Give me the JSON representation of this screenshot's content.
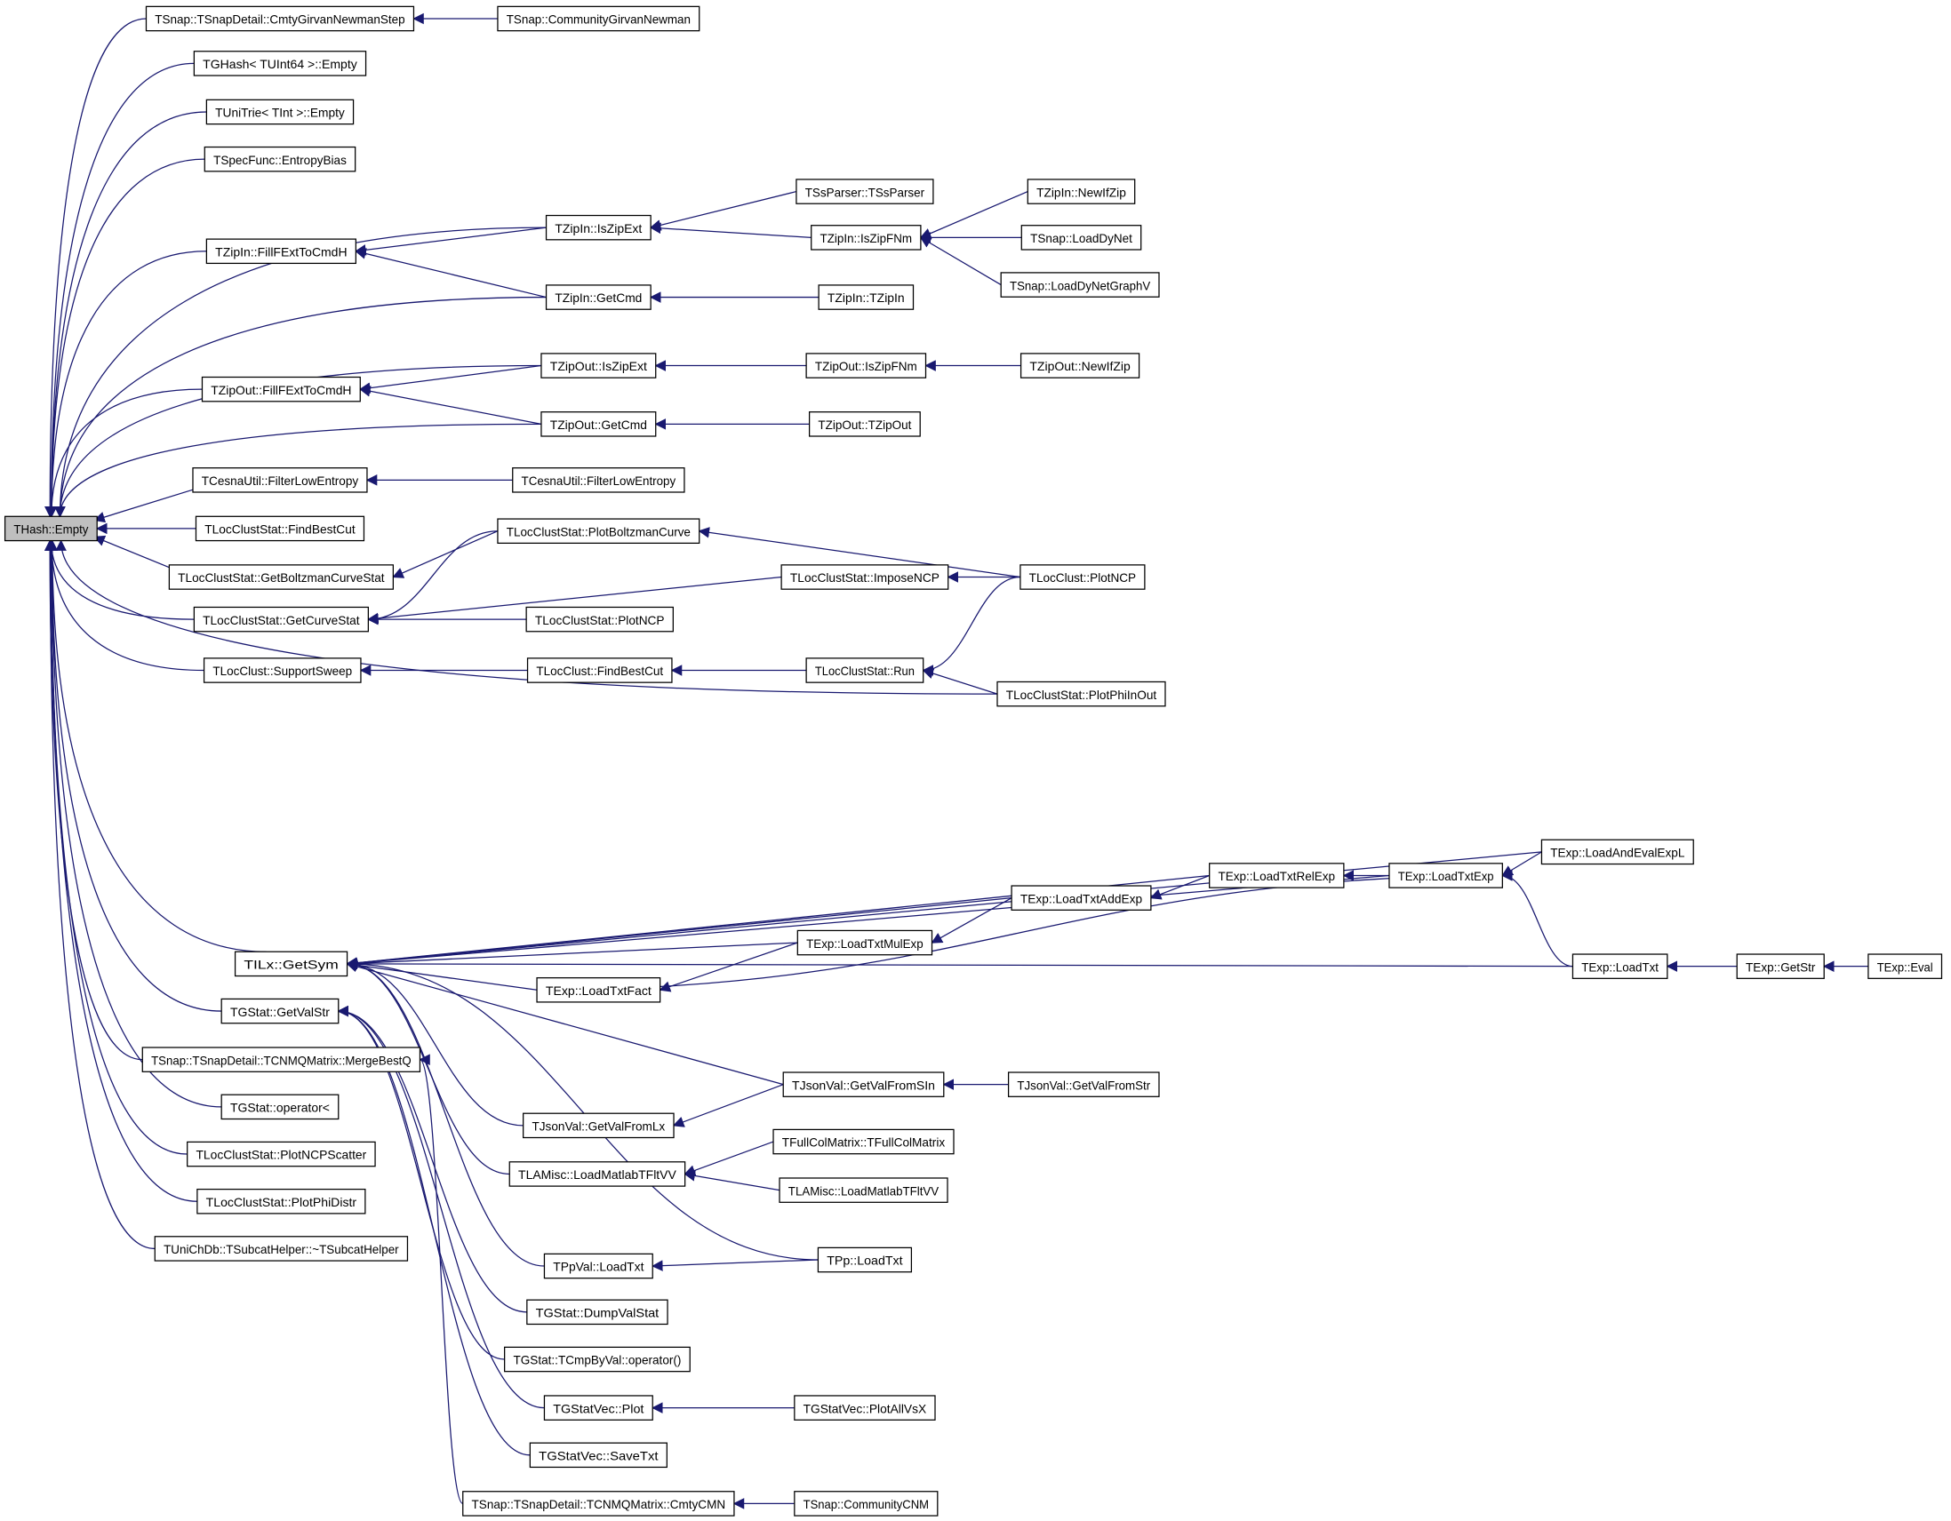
{
  "colors": {
    "edge": "#191970",
    "root_fill": "#bfbfbf",
    "node_fill": "#ffffff",
    "node_border": "#000000"
  },
  "root": "hashEmpty",
  "nodes": {
    "hashEmpty": "THash::Empty",
    "cgnStep": "TSnap::TSnapDetail::CmtyGirvanNewmanStep",
    "ghashEmpty": "TGHash< TUInt64 >::Empty",
    "unitrieEmpty": "TUniTrie< TInt >::Empty",
    "entropyBias": "TSpecFunc::EntropyBias",
    "zipInFill": "TZipIn::FillFExtToCmdH",
    "zipOutFill": "TZipOut::FillFExtToCmdH",
    "cesnaFLE1": "TCesnaUtil::FilterLowEntropy",
    "lcsFindBestCut": "TLocClustStat::FindBestCut",
    "lcsBoltzStat": "TLocClustStat::GetBoltzmanCurveStat",
    "lcsCurveStat": "TLocClustStat::GetCurveStat",
    "lcSupportSweep": "TLocClust::SupportSweep",
    "lxGetSym": "TILx::GetSym",
    "gstatGetValStr": "TGStat::GetValStr",
    "mergeBestQ": "TSnap::TSnapDetail::TCNMQMatrix::MergeBestQ",
    "gstatOpLess": "TGStat::operator<",
    "lcsNCPScatter": "TLocClustStat::PlotNCPScatter",
    "lcsPhiDistr": "TLocClustStat::PlotPhiDistr",
    "subcatHelper": "TUniChDb::TSubcatHelper::~TSubcatHelper",
    "communityGN": "TSnap::CommunityGirvanNewman",
    "zipInIsZipExt": "TZipIn::IsZipExt",
    "zipInGetCmd": "TZipIn::GetCmd",
    "zipOutIsZipExt": "TZipOut::IsZipExt",
    "zipOutGetCmd": "TZipOut::GetCmd",
    "cesnaFLE2": "TCesnaUtil::FilterLowEntropy",
    "lcsPlotBoltz": "TLocClustStat::PlotBoltzmanCurve",
    "lcsPlotNCP": "TLocClustStat::PlotNCP",
    "lcFindBestCut": "TLocClust::FindBestCut",
    "expLoadTxtFact": "TExp::LoadTxtFact",
    "jsonGetValFromLx": "TJsonVal::GetValFromLx",
    "lamiscLoad1": "TLAMisc::LoadMatlabTFltVV",
    "ppvalLoadTxt": "TPpVal::LoadTxt",
    "gstatDump": "TGStat::DumpValStat",
    "gstatCmpOp": "TGStat::TCmpByVal::operator()",
    "gstatvecPlot": "TGStatVec::Plot",
    "gstatvecSave": "TGStatVec::SaveTxt",
    "cmtyCMN": "TSnap::TSnapDetail::TCNMQMatrix::CmtyCMN",
    "ssParser": "TSsParser::TSsParser",
    "zipInIsZipFNm": "TZipIn::IsZipFNm",
    "zipInCtor": "TZipIn::TZipIn",
    "zipOutIsZipFNm": "TZipOut::IsZipFNm",
    "zipOutCtor": "TZipOut::TZipOut",
    "lcsImposeNCP": "TLocClustStat::ImposeNCP",
    "lcsRun": "TLocClustStat::Run",
    "expLoadTxtMulExp": "TExp::LoadTxtMulExp",
    "jsonGetValFromSIn": "TJsonVal::GetValFromSIn",
    "fullColMatrix": "TFullColMatrix::TFullColMatrix",
    "lamiscLoad2": "TLAMisc::LoadMatlabTFltVV",
    "ppLoadTxt": "TPp::LoadTxt",
    "gstatvecPlotAll": "TGStatVec::PlotAllVsX",
    "communityCNM": "TSnap::CommunityCNM",
    "zipInNewIfZip": "TZipIn::NewIfZip",
    "loadDyNet": "TSnap::LoadDyNet",
    "loadDyNetGraphV": "TSnap::LoadDyNetGraphV",
    "zipOutNewIfZip": "TZipOut::NewIfZip",
    "lcPlotNCP": "TLocClust::PlotNCP",
    "lcsPlotPhiInOut": "TLocClustStat::PlotPhiInOut",
    "expLoadTxtAddExp": "TExp::LoadTxtAddExp",
    "expLoadTxtRelExp": "TExp::LoadTxtRelExp",
    "expLoadTxtExp": "TExp::LoadTxtExp",
    "jsonGetValFromStr": "TJsonVal::GetValFromStr",
    "expLoadAndEval": "TExp::LoadAndEvalExpL",
    "expLoadTxt": "TExp::LoadTxt",
    "expGetStr": "TExp::GetStr",
    "expEval": "TExp::Eval"
  },
  "edges": [
    [
      "cgnStep",
      "hashEmpty"
    ],
    [
      "ghashEmpty",
      "hashEmpty"
    ],
    [
      "unitrieEmpty",
      "hashEmpty"
    ],
    [
      "entropyBias",
      "hashEmpty"
    ],
    [
      "zipInIsZipExt",
      "hashEmpty"
    ],
    [
      "zipInFill",
      "hashEmpty"
    ],
    [
      "zipInGetCmd",
      "hashEmpty"
    ],
    [
      "zipOutIsZipExt",
      "hashEmpty"
    ],
    [
      "zipOutFill",
      "hashEmpty"
    ],
    [
      "zipOutGetCmd",
      "hashEmpty"
    ],
    [
      "cesnaFLE1",
      "hashEmpty"
    ],
    [
      "lcsFindBestCut",
      "hashEmpty"
    ],
    [
      "lcsBoltzStat",
      "hashEmpty"
    ],
    [
      "lcsCurveStat",
      "hashEmpty"
    ],
    [
      "lcSupportSweep",
      "hashEmpty"
    ],
    [
      "lcsPlotPhiInOut",
      "hashEmpty"
    ],
    [
      "lxGetSym",
      "hashEmpty"
    ],
    [
      "gstatGetValStr",
      "hashEmpty"
    ],
    [
      "mergeBestQ",
      "hashEmpty"
    ],
    [
      "gstatOpLess",
      "hashEmpty"
    ],
    [
      "lcsNCPScatter",
      "hashEmpty"
    ],
    [
      "lcsPhiDistr",
      "hashEmpty"
    ],
    [
      "subcatHelper",
      "hashEmpty"
    ],
    [
      "communityGN",
      "cgnStep"
    ],
    [
      "zipInIsZipExt",
      "zipInFill"
    ],
    [
      "zipInGetCmd",
      "zipInFill"
    ],
    [
      "zipOutIsZipExt",
      "zipOutFill"
    ],
    [
      "zipOutGetCmd",
      "zipOutFill"
    ],
    [
      "ssParser",
      "zipInIsZipExt"
    ],
    [
      "zipInIsZipFNm",
      "zipInIsZipExt"
    ],
    [
      "zipInNewIfZip",
      "zipInIsZipFNm"
    ],
    [
      "loadDyNet",
      "zipInIsZipFNm"
    ],
    [
      "loadDyNetGraphV",
      "zipInIsZipFNm"
    ],
    [
      "zipInCtor",
      "zipInGetCmd"
    ],
    [
      "zipOutIsZipFNm",
      "zipOutIsZipExt"
    ],
    [
      "zipOutNewIfZip",
      "zipOutIsZipFNm"
    ],
    [
      "zipOutCtor",
      "zipOutGetCmd"
    ],
    [
      "cesnaFLE2",
      "cesnaFLE1"
    ],
    [
      "lcsPlotBoltz",
      "lcsBoltzStat"
    ],
    [
      "lcsPlotBoltz",
      "lcsCurveStat"
    ],
    [
      "lcsImposeNCP",
      "lcsCurveStat"
    ],
    [
      "lcsPlotNCP",
      "lcsCurveStat"
    ],
    [
      "lcPlotNCP",
      "lcsPlotBoltz"
    ],
    [
      "lcPlotNCP",
      "lcsImposeNCP"
    ],
    [
      "lcPlotNCP",
      "lcsRun"
    ],
    [
      "lcFindBestCut",
      "lcSupportSweep"
    ],
    [
      "lcsRun",
      "lcFindBestCut"
    ],
    [
      "lcsPlotPhiInOut",
      "lcsRun"
    ],
    [
      "expLoadAndEval",
      "lxGetSym"
    ],
    [
      "expLoadTxtExp",
      "lxGetSym"
    ],
    [
      "expLoadTxtRelExp",
      "lxGetSym"
    ],
    [
      "expLoadTxtAddExp",
      "lxGetSym"
    ],
    [
      "expLoadTxtMulExp",
      "lxGetSym"
    ],
    [
      "expLoadTxtFact",
      "lxGetSym"
    ],
    [
      "expLoadTxt",
      "lxGetSym"
    ],
    [
      "jsonGetValFromSIn",
      "lxGetSym"
    ],
    [
      "jsonGetValFromLx",
      "lxGetSym"
    ],
    [
      "lamiscLoad1",
      "lxGetSym"
    ],
    [
      "ppLoadTxt",
      "lxGetSym"
    ],
    [
      "ppvalLoadTxt",
      "lxGetSym"
    ],
    [
      "gstatDump",
      "gstatGetValStr"
    ],
    [
      "gstatCmpOp",
      "gstatGetValStr"
    ],
    [
      "gstatvecPlot",
      "gstatGetValStr"
    ],
    [
      "gstatvecSave",
      "gstatGetValStr"
    ],
    [
      "cmtyCMN",
      "mergeBestQ"
    ],
    [
      "expLoadTxtMulExp",
      "expLoadTxtFact"
    ],
    [
      "expLoadTxtAddExp",
      "expLoadTxtMulExp"
    ],
    [
      "expLoadTxtRelExp",
      "expLoadTxtAddExp"
    ],
    [
      "expLoadTxtExp",
      "expLoadTxtRelExp"
    ],
    [
      "expLoadTxtFact",
      "expLoadTxtExp"
    ],
    [
      "expLoadAndEval",
      "expLoadTxtExp"
    ],
    [
      "expLoadTxt",
      "expLoadTxtExp"
    ],
    [
      "expGetStr",
      "expLoadTxt"
    ],
    [
      "expEval",
      "expGetStr"
    ],
    [
      "jsonGetValFromSIn",
      "jsonGetValFromLx"
    ],
    [
      "jsonGetValFromStr",
      "jsonGetValFromSIn"
    ],
    [
      "fullColMatrix",
      "lamiscLoad1"
    ],
    [
      "lamiscLoad2",
      "lamiscLoad1"
    ],
    [
      "ppLoadTxt",
      "ppvalLoadTxt"
    ],
    [
      "gstatvecPlotAll",
      "gstatvecPlot"
    ],
    [
      "communityCNM",
      "cmtyCMN"
    ]
  ]
}
